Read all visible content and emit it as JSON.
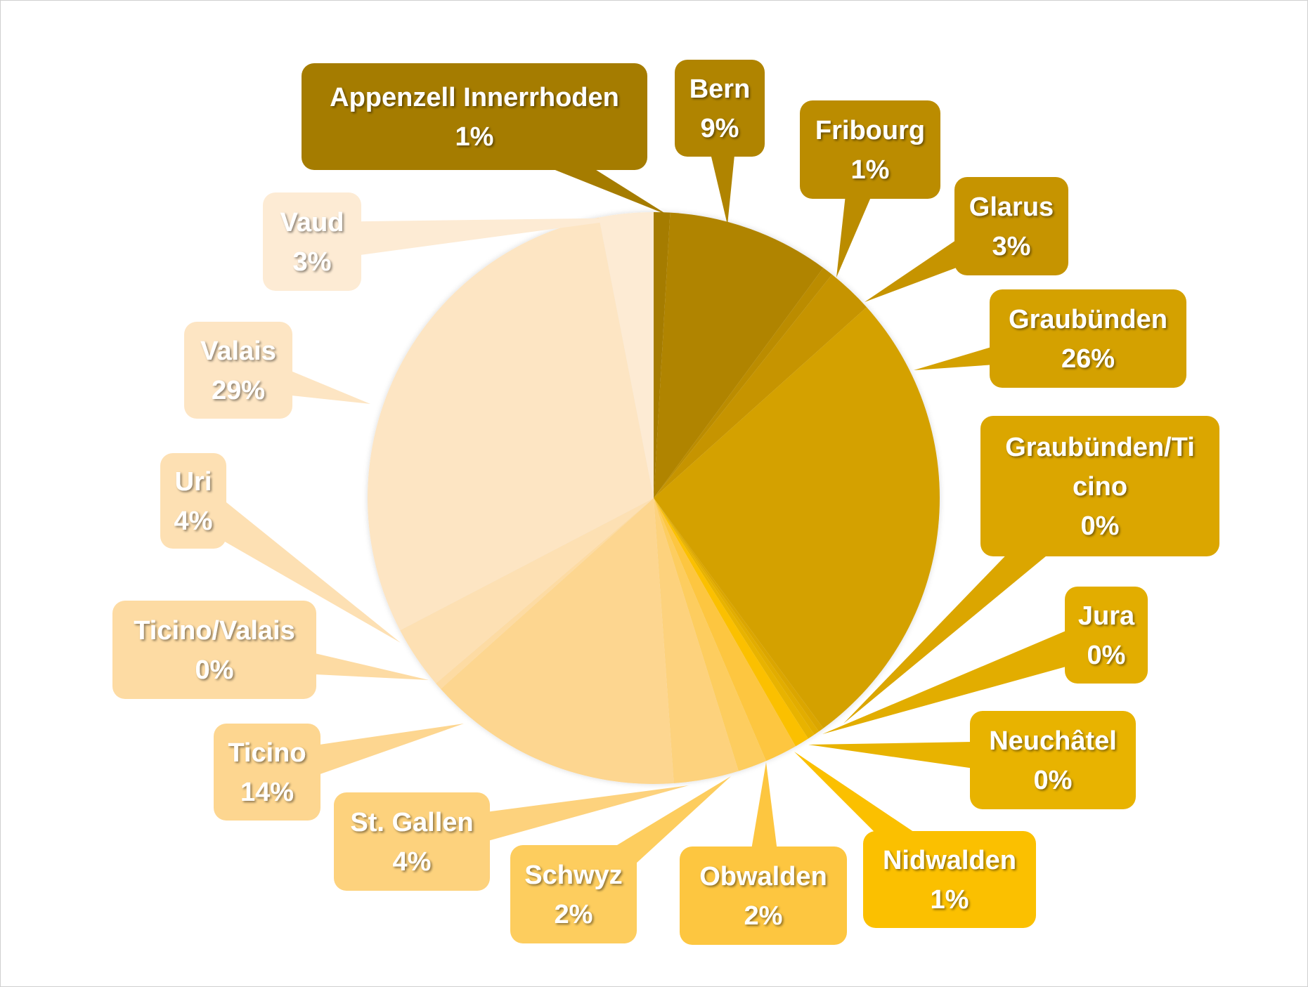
{
  "chart_data": {
    "type": "pie",
    "title": "",
    "slices": [
      {
        "name": "Appenzell Innerrhoden",
        "label_lines": [
          "Appenzell Innerrhoden"
        ],
        "percent_label": "1%",
        "value": 0.9,
        "color": "#a57c00",
        "text_color": "#ffffff"
      },
      {
        "name": "Bern",
        "label_lines": [
          "Bern"
        ],
        "percent_label": "9%",
        "value": 9.0,
        "color": "#b08400",
        "text_color": "#ffffff"
      },
      {
        "name": "Fribourg",
        "label_lines": [
          "Fribourg"
        ],
        "percent_label": "1%",
        "value": 0.6,
        "color": "#bb8c00",
        "text_color": "#ffffff"
      },
      {
        "name": "Glarus",
        "label_lines": [
          "Glarus"
        ],
        "percent_label": "3%",
        "value": 2.6,
        "color": "#c69400",
        "text_color": "#ffffff"
      },
      {
        "name": "Graubünden",
        "label_lines": [
          "Graubünden"
        ],
        "percent_label": "26%",
        "value": 26.0,
        "color": "#d4a100",
        "text_color": "#ffffff"
      },
      {
        "name": "Graubünden/Ticino",
        "label_lines": [
          "Graubünden/Ti",
          "cino"
        ],
        "percent_label": "0%",
        "value": 0.3,
        "color": "#dba600",
        "text_color": "#ffffff"
      },
      {
        "name": "Jura",
        "label_lines": [
          "Jura"
        ],
        "percent_label": "0%",
        "value": 0.3,
        "color": "#e2ad00",
        "text_color": "#ffffff"
      },
      {
        "name": "Neuchâtel",
        "label_lines": [
          "Neuchâtel"
        ],
        "percent_label": "0%",
        "value": 0.4,
        "color": "#e8b300",
        "text_color": "#ffffff"
      },
      {
        "name": "Nidwalden",
        "label_lines": [
          "Nidwalden"
        ],
        "percent_label": "1%",
        "value": 0.8,
        "color": "#fbc000",
        "text_color": "#ffffff"
      },
      {
        "name": "Obwalden",
        "label_lines": [
          "Obwalden"
        ],
        "percent_label": "2%",
        "value": 1.8,
        "color": "#fdc640",
        "text_color": "#ffffff"
      },
      {
        "name": "Schwyz",
        "label_lines": [
          "Schwyz"
        ],
        "percent_label": "2%",
        "value": 1.6,
        "color": "#fdcd5e",
        "text_color": "#ffffff"
      },
      {
        "name": "St. Gallen",
        "label_lines": [
          "St. Gallen"
        ],
        "percent_label": "4%",
        "value": 3.6,
        "color": "#fdd27d",
        "text_color": "#ffffff"
      },
      {
        "name": "Ticino",
        "label_lines": [
          "Ticino"
        ],
        "percent_label": "14%",
        "value": 14.2,
        "color": "#fdd690",
        "text_color": "#ffffff"
      },
      {
        "name": "Ticino/Valais",
        "label_lines": [
          "Ticino/Valais"
        ],
        "percent_label": "0%",
        "value": 0.4,
        "color": "#fddba3",
        "text_color": "#ffffff"
      },
      {
        "name": "Uri",
        "label_lines": [
          "Uri"
        ],
        "percent_label": "4%",
        "value": 3.5,
        "color": "#fde0b3",
        "text_color": "#ffffff"
      },
      {
        "name": "Valais",
        "label_lines": [
          "Valais"
        ],
        "percent_label": "29%",
        "value": 29.0,
        "color": "#fde5c3",
        "text_color": "#ffffff"
      },
      {
        "name": "Vaud",
        "label_lines": [
          "Vaud"
        ],
        "percent_label": "3%",
        "value": 3.0,
        "color": "#fdebd4",
        "text_color": "#ffffff"
      }
    ]
  }
}
